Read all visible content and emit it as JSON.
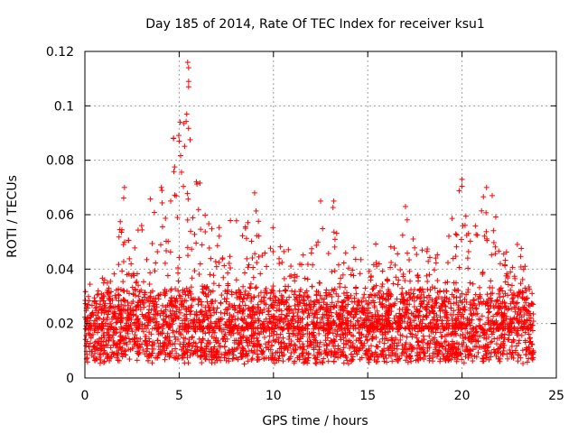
{
  "chart_data": {
    "type": "scatter",
    "title": "Day 185 of 2014, Rate Of TEC Index for receiver ksu1",
    "xlabel": "GPS time / hours",
    "ylabel": "ROTI / TECUs",
    "xlim": [
      0,
      25
    ],
    "ylim": [
      0,
      0.12
    ],
    "xticks": [
      0,
      5,
      10,
      15,
      20,
      25
    ],
    "xtick_labels": [
      "0",
      "5",
      "10",
      "15",
      "20",
      "25"
    ],
    "yticks": [
      0,
      0.02,
      0.04,
      0.06,
      0.08,
      0.1,
      0.12
    ],
    "ytick_labels": [
      "0",
      "0.02",
      "0.04",
      "0.06",
      "0.08",
      "0.1",
      "0.12"
    ],
    "grid": true,
    "marker": "+",
    "color": "#ff0000",
    "x_range_hours": [
      0,
      23.8
    ],
    "background_band": [
      0.005,
      0.03
    ],
    "envelope": [
      {
        "x": 0.0,
        "ymax": 0.052
      },
      {
        "x": 0.5,
        "ymax": 0.035
      },
      {
        "x": 1.0,
        "ymax": 0.038
      },
      {
        "x": 1.5,
        "ymax": 0.035
      },
      {
        "x": 2.0,
        "ymax": 0.07
      },
      {
        "x": 2.5,
        "ymax": 0.045
      },
      {
        "x": 3.0,
        "ymax": 0.068
      },
      {
        "x": 3.5,
        "ymax": 0.066
      },
      {
        "x": 4.0,
        "ymax": 0.068
      },
      {
        "x": 4.5,
        "ymax": 0.088
      },
      {
        "x": 5.0,
        "ymax": 0.094
      },
      {
        "x": 5.3,
        "ymax": 0.116
      },
      {
        "x": 5.8,
        "ymax": 0.082
      },
      {
        "x": 6.5,
        "ymax": 0.06
      },
      {
        "x": 7.0,
        "ymax": 0.055
      },
      {
        "x": 8.0,
        "ymax": 0.06
      },
      {
        "x": 9.0,
        "ymax": 0.068
      },
      {
        "x": 9.5,
        "ymax": 0.045
      },
      {
        "x": 10.0,
        "ymax": 0.058
      },
      {
        "x": 11.0,
        "ymax": 0.045
      },
      {
        "x": 12.0,
        "ymax": 0.048
      },
      {
        "x": 12.5,
        "ymax": 0.065
      },
      {
        "x": 13.2,
        "ymax": 0.066
      },
      {
        "x": 13.7,
        "ymax": 0.05
      },
      {
        "x": 14.5,
        "ymax": 0.048
      },
      {
        "x": 15.2,
        "ymax": 0.053
      },
      {
        "x": 16.0,
        "ymax": 0.045
      },
      {
        "x": 17.0,
        "ymax": 0.064
      },
      {
        "x": 18.0,
        "ymax": 0.05
      },
      {
        "x": 19.0,
        "ymax": 0.045
      },
      {
        "x": 20.0,
        "ymax": 0.074
      },
      {
        "x": 20.5,
        "ymax": 0.048
      },
      {
        "x": 21.0,
        "ymax": 0.07
      },
      {
        "x": 21.5,
        "ymax": 0.067
      },
      {
        "x": 22.0,
        "ymax": 0.055
      },
      {
        "x": 22.5,
        "ymax": 0.045
      },
      {
        "x": 23.0,
        "ymax": 0.052
      },
      {
        "x": 23.8,
        "ymax": 0.028
      }
    ],
    "outliers": [
      {
        "x": 5.45,
        "y": 0.116
      },
      {
        "x": 5.5,
        "y": 0.114
      },
      {
        "x": 5.5,
        "y": 0.109
      },
      {
        "x": 5.5,
        "y": 0.107
      },
      {
        "x": 5.4,
        "y": 0.097
      },
      {
        "x": 5.05,
        "y": 0.094
      },
      {
        "x": 5.0,
        "y": 0.087
      },
      {
        "x": 4.7,
        "y": 0.088
      },
      {
        "x": 2.1,
        "y": 0.07
      },
      {
        "x": 20.0,
        "y": 0.073
      },
      {
        "x": 21.3,
        "y": 0.07
      },
      {
        "x": 21.6,
        "y": 0.067
      },
      {
        "x": 17.0,
        "y": 0.063
      },
      {
        "x": 13.2,
        "y": 0.065
      },
      {
        "x": 9.0,
        "y": 0.068
      },
      {
        "x": 12.5,
        "y": 0.065
      }
    ]
  }
}
